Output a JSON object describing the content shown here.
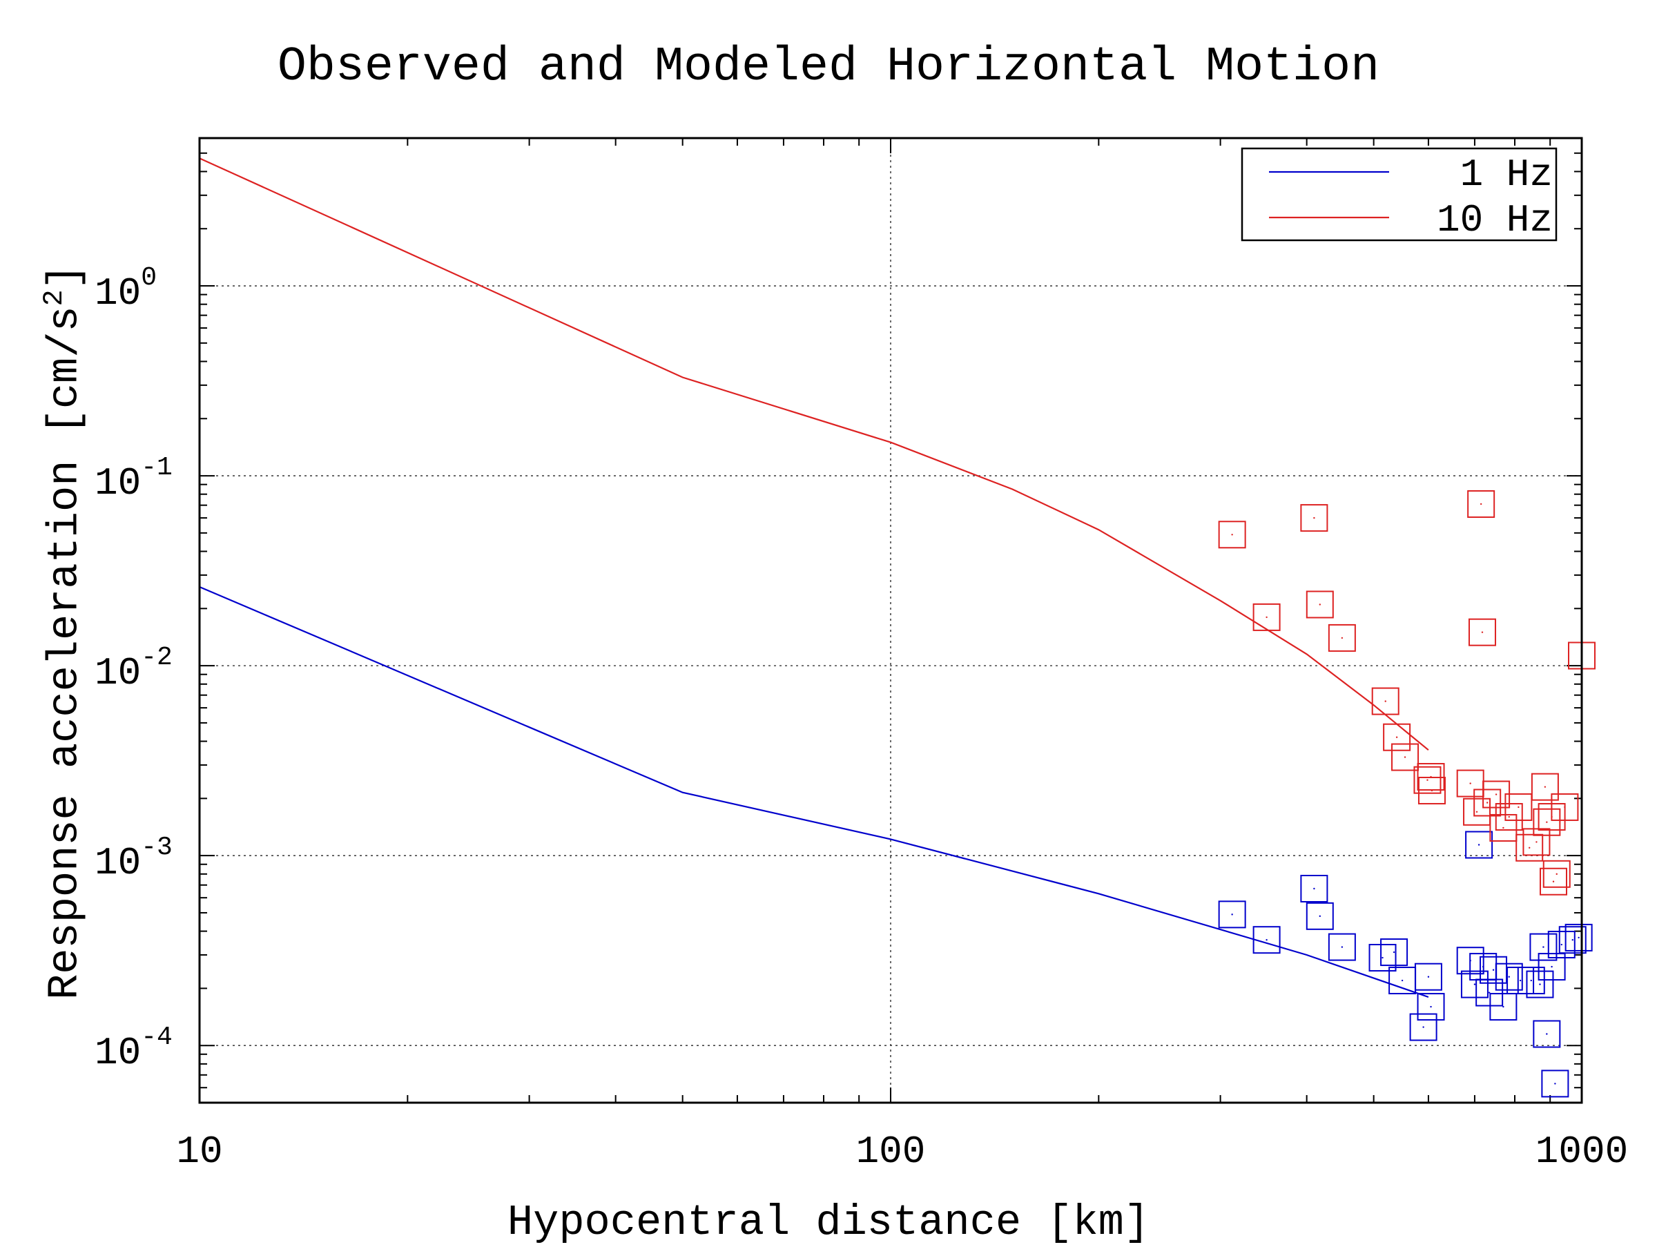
{
  "chart_data": {
    "type": "scatter",
    "title": "Observed and Modeled Horizontal Motion",
    "xlabel": "Hypocentral distance [km]",
    "ylabel": "Response acceleration [cm/s",
    "ylabel_sup": "2",
    "ylabel_close": "]",
    "xscale": "log",
    "yscale": "log",
    "xlim": [
      10,
      1000
    ],
    "ylim": [
      5e-05,
      6
    ],
    "xticks": [
      {
        "value": 10,
        "label": "10"
      },
      {
        "value": 100,
        "label": "100"
      },
      {
        "value": 1000,
        "label": "1000"
      }
    ],
    "yticks": [
      {
        "value": 1,
        "base": "10",
        "exp": "0"
      },
      {
        "value": 0.1,
        "base": "10",
        "exp": "-1"
      },
      {
        "value": 0.01,
        "base": "10",
        "exp": "-2"
      },
      {
        "value": 0.001,
        "base": "10",
        "exp": "-3"
      },
      {
        "value": 0.0001,
        "base": "10",
        "exp": "-4"
      }
    ],
    "grid": "dotted at major ticks",
    "legend_position": "top-right",
    "series": [
      {
        "name": "1 Hz",
        "color": "#0000cc",
        "line": [
          [
            10,
            0.026
          ],
          [
            50,
            0.00215
          ],
          [
            100,
            0.00122
          ],
          [
            200,
            0.00063
          ],
          [
            400,
            0.0003
          ],
          [
            600,
            0.00018
          ]
        ],
        "points": [
          [
            312,
            0.00049
          ],
          [
            350,
            0.00036
          ],
          [
            410,
            0.00067
          ],
          [
            418,
            0.00048
          ],
          [
            450,
            0.00033
          ],
          [
            515,
            0.00029
          ],
          [
            535,
            0.00031
          ],
          [
            550,
            0.00022
          ],
          [
            590,
            0.000125
          ],
          [
            600,
            0.00023
          ],
          [
            605,
            0.00016
          ],
          [
            690,
            0.00028
          ],
          [
            700,
            0.00021
          ],
          [
            710,
            0.00114
          ],
          [
            720,
            0.00026
          ],
          [
            735,
            0.00019
          ],
          [
            745,
            0.00025
          ],
          [
            770,
            0.00016
          ],
          [
            785,
            0.00023
          ],
          [
            815,
            0.00022
          ],
          [
            845,
            0.00022
          ],
          [
            870,
            0.00021
          ],
          [
            880,
            0.00033
          ],
          [
            890,
            0.000115
          ],
          [
            905,
            0.00026
          ],
          [
            915,
            6.3e-05
          ],
          [
            935,
            0.00034
          ],
          [
            970,
            0.00036
          ],
          [
            990,
            0.00037
          ]
        ]
      },
      {
        "name": "10 Hz",
        "color": "#dd2222",
        "line": [
          [
            10,
            4.7
          ],
          [
            50,
            0.33
          ],
          [
            100,
            0.15
          ],
          [
            150,
            0.085
          ],
          [
            200,
            0.052
          ],
          [
            300,
            0.022
          ],
          [
            400,
            0.0115
          ],
          [
            500,
            0.0062
          ],
          [
            600,
            0.0036
          ]
        ],
        "points": [
          [
            312,
            0.049
          ],
          [
            350,
            0.018
          ],
          [
            410,
            0.06
          ],
          [
            418,
            0.021
          ],
          [
            450,
            0.014
          ],
          [
            520,
            0.0065
          ],
          [
            540,
            0.0042
          ],
          [
            555,
            0.0033
          ],
          [
            598,
            0.0025
          ],
          [
            605,
            0.0026
          ],
          [
            607,
            0.0022
          ],
          [
            690,
            0.0024
          ],
          [
            705,
            0.0017
          ],
          [
            715,
            0.071
          ],
          [
            718,
            0.015
          ],
          [
            730,
            0.0019
          ],
          [
            752,
            0.0021
          ],
          [
            770,
            0.0014
          ],
          [
            785,
            0.0016
          ],
          [
            810,
            0.0018
          ],
          [
            840,
            0.0011
          ],
          [
            860,
            0.00118
          ],
          [
            885,
            0.0023
          ],
          [
            890,
            0.0015
          ],
          [
            905,
            0.0016
          ],
          [
            910,
            0.00073
          ],
          [
            920,
            0.0008
          ],
          [
            945,
            0.0018
          ],
          [
            1000,
            0.0113
          ]
        ]
      }
    ]
  }
}
